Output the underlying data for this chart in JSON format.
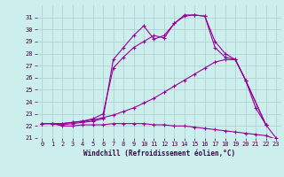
{
  "xlabel": "Windchill (Refroidissement éolien,°C)",
  "background_color": "#cceeed",
  "grid_color": "#aacccc",
  "line_color": "#990099",
  "xlim": [
    -0.5,
    23.5
  ],
  "ylim": [
    21,
    32
  ],
  "yticks": [
    21,
    22,
    23,
    24,
    25,
    26,
    27,
    28,
    29,
    30,
    31
  ],
  "xticks": [
    0,
    1,
    2,
    3,
    4,
    5,
    6,
    7,
    8,
    9,
    10,
    11,
    12,
    13,
    14,
    15,
    16,
    17,
    18,
    19,
    20,
    21,
    22,
    23
  ],
  "line1_x": [
    0,
    1,
    2,
    3,
    4,
    5,
    6,
    7,
    8,
    9,
    10,
    11,
    12,
    13,
    14,
    15,
    16,
    17,
    18,
    19,
    20,
    21,
    22,
    23
  ],
  "line1_y": [
    22.2,
    22.2,
    22.0,
    22.0,
    22.1,
    22.1,
    22.1,
    22.2,
    22.2,
    22.2,
    22.2,
    22.1,
    22.1,
    22.0,
    22.0,
    21.9,
    21.8,
    21.7,
    21.6,
    21.5,
    21.4,
    21.3,
    21.2,
    20.9
  ],
  "line2_x": [
    0,
    1,
    2,
    3,
    4,
    5,
    6,
    7,
    8,
    9,
    10,
    11,
    12,
    13,
    14,
    15,
    16,
    17,
    18,
    19,
    20,
    21,
    22,
    23
  ],
  "line2_y": [
    22.2,
    22.2,
    22.2,
    22.3,
    22.4,
    22.5,
    22.7,
    22.9,
    23.2,
    23.5,
    23.9,
    24.3,
    24.8,
    25.3,
    25.8,
    26.3,
    26.8,
    27.3,
    27.5,
    27.5,
    25.8,
    23.5,
    22.1,
    21.0
  ],
  "line3_x": [
    0,
    1,
    2,
    3,
    4,
    5,
    6,
    7,
    8,
    9,
    10,
    11,
    12,
    13,
    14,
    15,
    16,
    17,
    18,
    19,
    20,
    22
  ],
  "line3_y": [
    22.2,
    22.2,
    22.1,
    22.2,
    22.3,
    22.4,
    22.6,
    27.5,
    28.5,
    29.5,
    30.3,
    29.2,
    29.5,
    30.5,
    31.2,
    31.2,
    31.1,
    28.5,
    27.7,
    27.5,
    25.8,
    22.1
  ],
  "line4_x": [
    0,
    1,
    2,
    3,
    4,
    5,
    6,
    7,
    8,
    9,
    10,
    11,
    12,
    13,
    14,
    15,
    16,
    17,
    18,
    19,
    20,
    22
  ],
  "line4_y": [
    22.2,
    22.2,
    22.2,
    22.3,
    22.4,
    22.6,
    23.0,
    26.8,
    27.7,
    28.5,
    29.0,
    29.5,
    29.3,
    30.5,
    31.1,
    31.2,
    31.1,
    29.0,
    28.0,
    27.5,
    25.8,
    22.1
  ]
}
